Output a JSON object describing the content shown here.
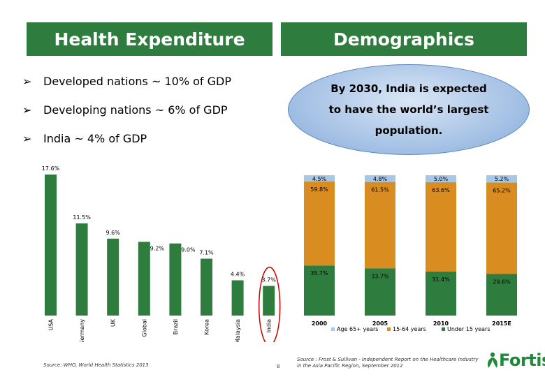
{
  "banners": {
    "left": "Health Expenditure",
    "right": "Demographics"
  },
  "bullets": [
    "Developed nations ~ 10% of GDP",
    "Developing nations ~ 6% of GDP",
    "India ~ 4% of GDP"
  ],
  "callout": "By 2030, India is expected to have the world’s largest population.",
  "colors": {
    "banner": "#2e7d3e",
    "bar_green": "#2e7d3e",
    "segment_orange": "#d98c1f",
    "segment_blue": "#a7c7e7",
    "highlight_circle": "#cc0000"
  },
  "chart_data": [
    {
      "type": "bar",
      "categories": [
        "USA",
        "Germany",
        "UK",
        "Global",
        "Brazil",
        "Korea",
        "Malaysia",
        "India"
      ],
      "values": [
        17.6,
        11.5,
        9.6,
        9.2,
        9.0,
        7.1,
        4.4,
        3.7
      ],
      "data_labels": [
        "17.6%",
        "11.5%",
        "9.6%",
        "9.2%",
        "9.0%",
        "7.1%",
        "4.4%",
        "3.7%"
      ],
      "ylim": [
        0,
        17.6
      ],
      "grid": false,
      "highlight": "India"
    },
    {
      "type": "bar",
      "stacked": true,
      "categories": [
        "2000",
        "2005",
        "2010",
        "2015E"
      ],
      "series": [
        {
          "name": "Under 15 years",
          "values": [
            35.7,
            33.7,
            31.4,
            29.6
          ],
          "labels": [
            "35.7%",
            "33.7%",
            "31.4%",
            "29.6%"
          ]
        },
        {
          "name": "15-64 years",
          "values": [
            59.8,
            61.5,
            63.6,
            65.2
          ],
          "labels": [
            "59.8%",
            "61.5%",
            "63.6%",
            "65.2%"
          ]
        },
        {
          "name": "Age 65+ years",
          "values": [
            4.5,
            4.8,
            5.0,
            5.2
          ],
          "labels": [
            "4.5%",
            "4.8%",
            "5.0%",
            "5.2%"
          ]
        }
      ],
      "legend_order": [
        "Age 65+ years",
        "15-64 years",
        "Under 15 years"
      ],
      "legend": "bottom",
      "ylim": [
        0,
        100
      ],
      "grid": false
    }
  ],
  "sources": {
    "left": "Source: WHO, World Health Statistics 2013",
    "right": "Source : Frost & Sullivan - Independent Report on the Healthcare Industry in the Asia Pacific Region, September 2012"
  },
  "page_number": "8",
  "logo": {
    "text": "Fortis"
  }
}
